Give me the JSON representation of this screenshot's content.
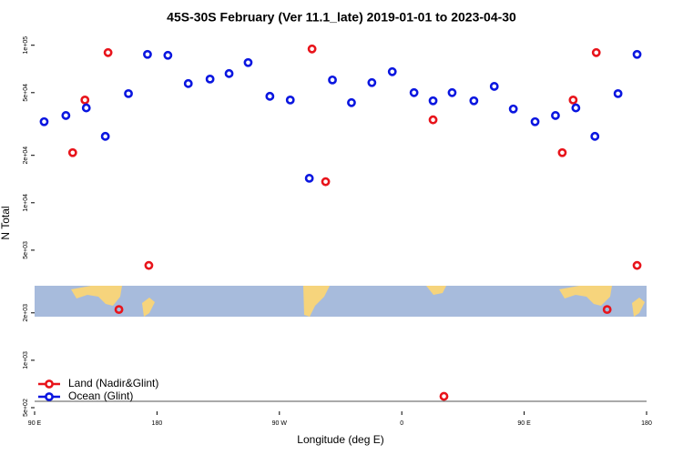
{
  "chart_data": {
    "type": "scatter",
    "title": "45S-30S February (Ver 11.1_late)   2019-01-01 to 2023-04-30",
    "x_label": "Longitude (deg E)",
    "y_label": "N Total",
    "log_y": true,
    "xlim": [
      90,
      540
    ],
    "ylim": [
      500,
      120000
    ],
    "xticks": [
      {
        "value": 90,
        "label": "90 E"
      },
      {
        "value": 180,
        "label": "180"
      },
      {
        "value": 270,
        "label": "90 W"
      },
      {
        "value": 360,
        "label": "0"
      },
      {
        "value": 450,
        "label": "90 E"
      },
      {
        "value": 540,
        "label": "180"
      }
    ],
    "yticks": [
      {
        "value": 500,
        "label": "5e+02"
      },
      {
        "value": 1000,
        "label": "1e+03"
      },
      {
        "value": 2000,
        "label": "2e+03"
      },
      {
        "value": 5000,
        "label": "5e+03"
      },
      {
        "value": 10000,
        "label": "1e+04"
      },
      {
        "value": 20000,
        "label": "2e+04"
      },
      {
        "value": 50000,
        "label": "5e+04"
      },
      {
        "value": 100000,
        "label": "1e+05"
      }
    ],
    "legend_position": "lower left",
    "series": [
      {
        "name": "Land (Nadir&Glint)",
        "color": "#e8141b",
        "x": [
          118,
          127,
          144,
          152,
          174,
          294,
          304,
          383,
          391,
          478,
          486,
          503,
          511,
          533
        ],
        "values": [
          20800,
          44900,
          89800,
          2100,
          4000,
          94700,
          13600,
          33600,
          590,
          20800,
          44900,
          89800,
          2100,
          4000
        ]
      },
      {
        "name": "Ocean (Glint)",
        "color": "#0a16e0",
        "x": [
          97,
          113,
          128,
          142,
          159,
          173,
          188,
          203,
          219,
          233,
          247,
          263,
          278,
          292,
          309,
          323,
          338,
          353,
          369,
          383,
          397,
          413,
          428,
          442,
          458,
          473,
          488,
          502,
          519,
          533
        ],
        "values": [
          32700,
          35800,
          40000,
          26400,
          49300,
          87500,
          86300,
          57100,
          61000,
          66100,
          77600,
          47400,
          44900,
          14300,
          60200,
          43200,
          57900,
          67900,
          50000,
          44400,
          50000,
          44400,
          54800,
          39400,
          32700,
          35800,
          40000,
          26400,
          49300,
          87500
        ]
      }
    ]
  }
}
